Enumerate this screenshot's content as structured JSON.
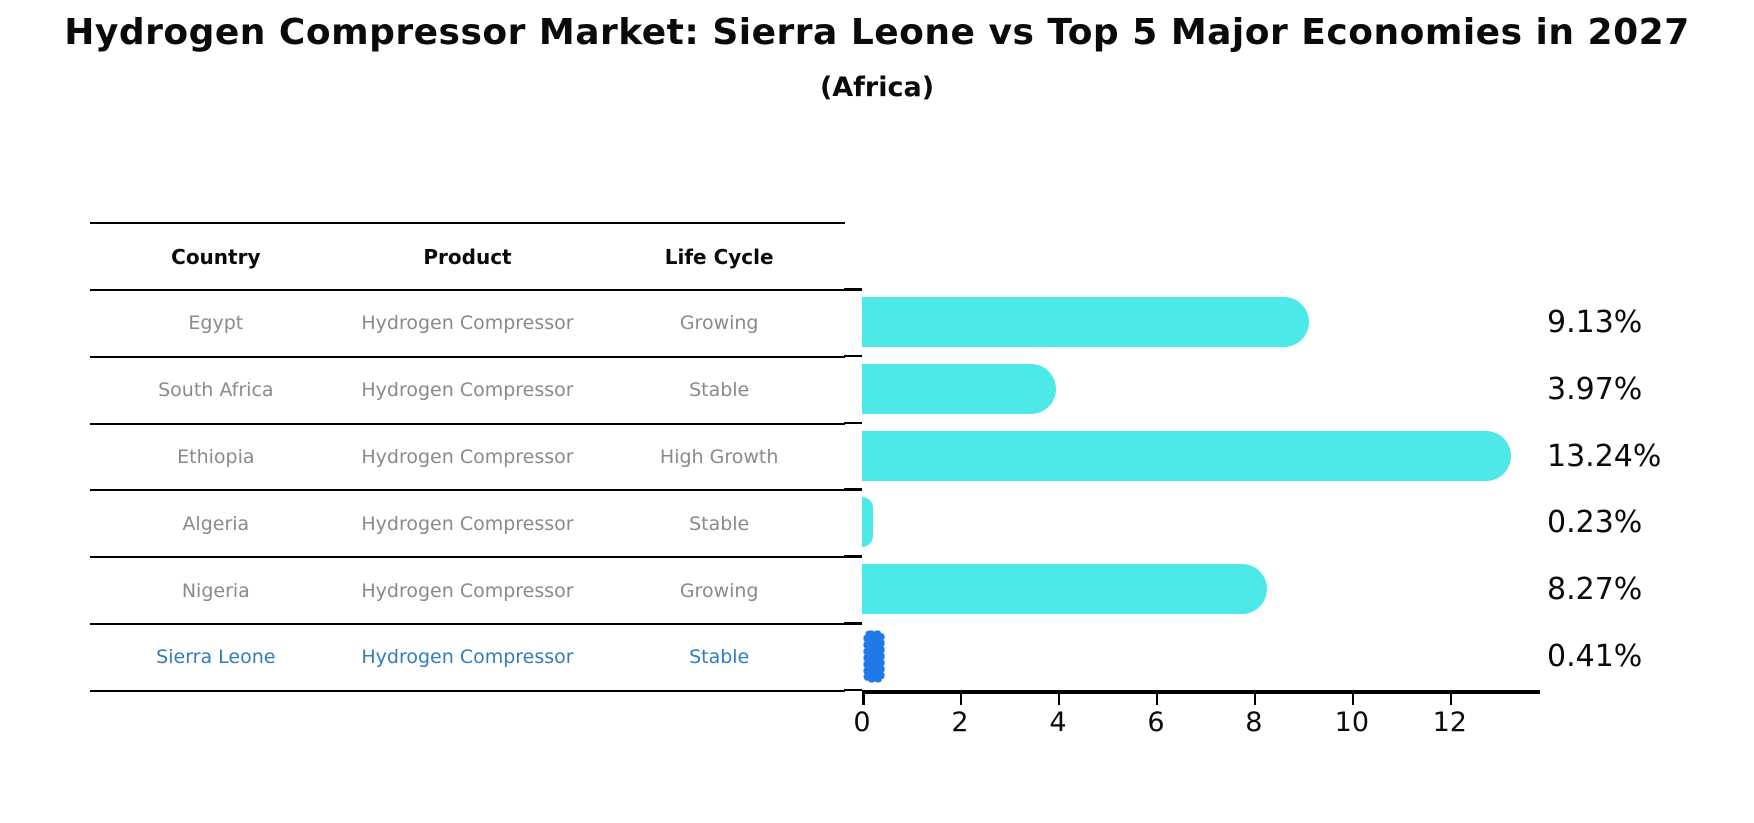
{
  "title": "Hydrogen Compressor Market: Sierra Leone vs Top 5 Major Economies in 2027",
  "subtitle": "(Africa)",
  "table": {
    "headers": [
      "Country",
      "Product",
      "Life Cycle"
    ],
    "rows": [
      {
        "country": "Egypt",
        "product": "Hydrogen Compressor",
        "life_cycle": "Growing",
        "value": 9.13,
        "value_label": "9.13%",
        "highlighted": false
      },
      {
        "country": "South Africa",
        "product": "Hydrogen Compressor",
        "life_cycle": "Stable",
        "value": 3.97,
        "value_label": "3.97%",
        "highlighted": false
      },
      {
        "country": "Ethiopia",
        "product": "Hydrogen Compressor",
        "life_cycle": "High Growth",
        "value": 13.24,
        "value_label": "13.24%",
        "highlighted": false
      },
      {
        "country": "Algeria",
        "product": "Hydrogen Compressor",
        "life_cycle": "Stable",
        "value": 0.23,
        "value_label": "0.23%",
        "highlighted": false
      },
      {
        "country": "Nigeria",
        "product": "Hydrogen Compressor",
        "life_cycle": "Growing",
        "value": 8.27,
        "value_label": "8.27%",
        "highlighted": false
      },
      {
        "country": "Sierra Leone",
        "product": "Hydrogen Compressor",
        "life_cycle": "Stable",
        "value": 0.41,
        "value_label": "0.41%",
        "highlighted": true
      }
    ]
  },
  "chart_data": {
    "type": "bar",
    "orientation": "horizontal",
    "title": "Hydrogen Compressor Market: Sierra Leone vs Top 5 Major Economies in 2027",
    "subtitle": "(Africa)",
    "categories": [
      "Egypt",
      "South Africa",
      "Ethiopia",
      "Algeria",
      "Nigeria",
      "Sierra Leone"
    ],
    "values": [
      9.13,
      3.97,
      13.24,
      0.23,
      8.27,
      0.41
    ],
    "value_labels": [
      "9.13%",
      "3.97%",
      "13.24%",
      "0.23%",
      "8.27%",
      "0.41%"
    ],
    "xlabel": "",
    "ylabel": "",
    "x_ticks": [
      0,
      2,
      4,
      6,
      8,
      10,
      12
    ],
    "xlim": [
      0,
      13.8
    ],
    "grid": false,
    "legend": false,
    "bar_color": "#4de8e8",
    "highlight_bar_color": "#1f7ae8",
    "highlight_bar_style": "squiggle-edge",
    "highlight_text_color": "#2f7dc1",
    "row_text_color": "#8a8a8a",
    "axis_color": "#000000"
  }
}
